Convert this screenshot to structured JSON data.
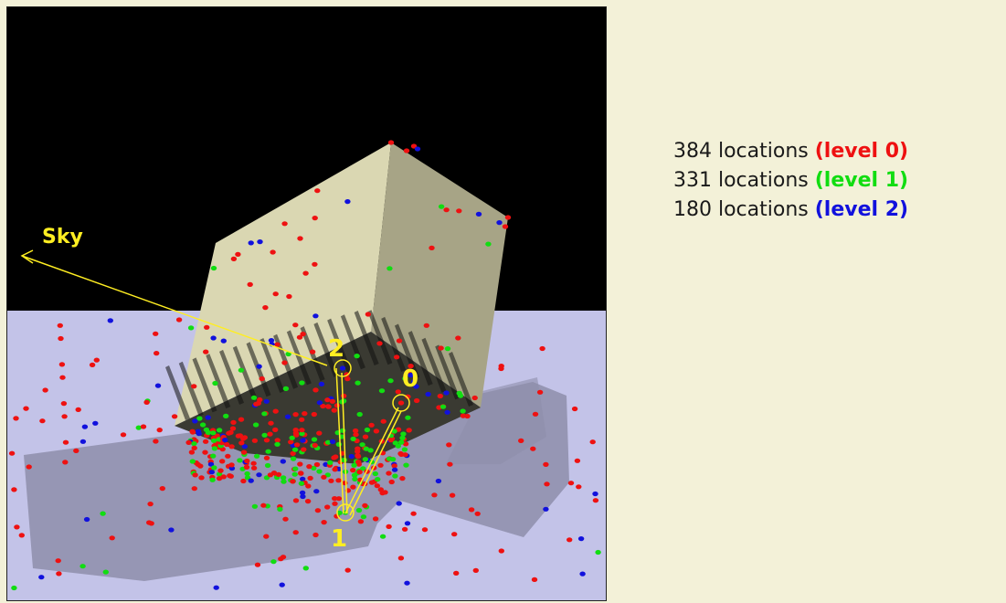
{
  "scene": {
    "labels": {
      "sky": "Sky",
      "point_0": "0",
      "point_1": "1",
      "point_2": "2"
    },
    "colors": {
      "sky_background": "#000000",
      "ground": "#c3c3e8",
      "shadow": "#8e8eaa",
      "box_light": "#dad7b2",
      "box_shaded": "#a7a486",
      "box_underside": "#3a3a32",
      "annotation": "#ffee22",
      "level_0": "#ee1111",
      "level_1": "#11dd11",
      "level_2": "#1111dd"
    }
  },
  "legend": {
    "rows": [
      {
        "count_text": "384 locations",
        "level_text": "(level 0)",
        "color": "#ee1111"
      },
      {
        "count_text": "331 locations",
        "level_text": "(level 1)",
        "color": "#11dd11"
      },
      {
        "count_text": "180 locations",
        "level_text": "(level 2)",
        "color": "#1111dd"
      }
    ]
  }
}
